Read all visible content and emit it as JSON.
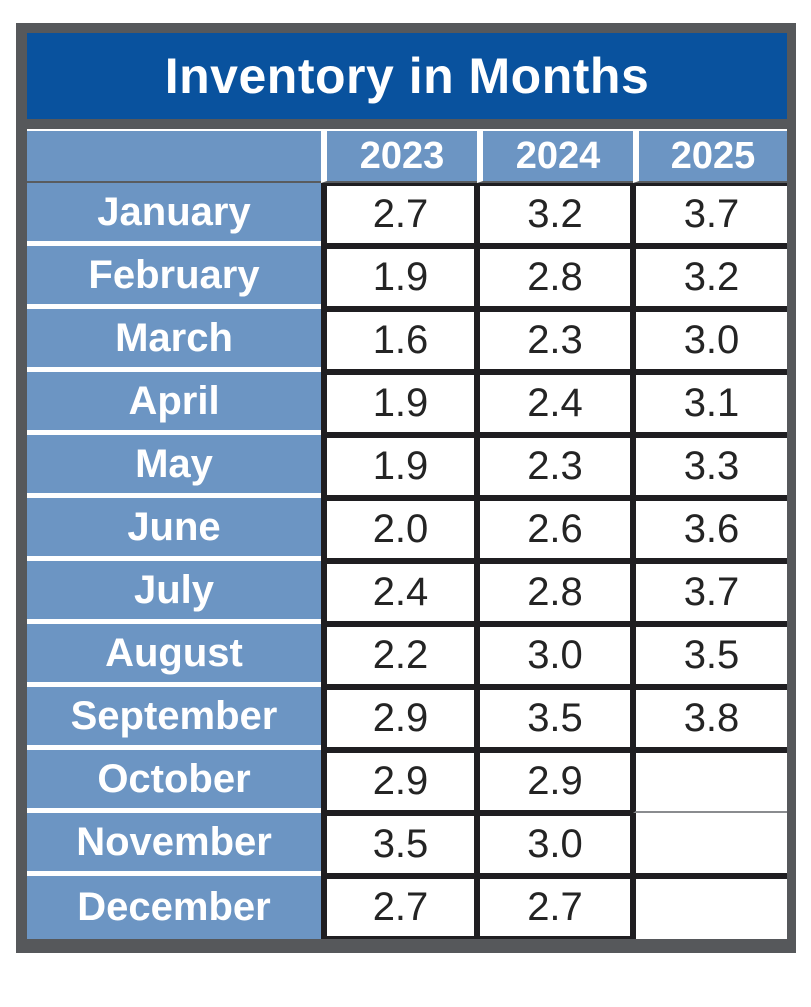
{
  "title": "Inventory in Months",
  "table": {
    "columns": [
      "2023",
      "2024",
      "2025"
    ],
    "rows": [
      {
        "month": "January",
        "values": [
          "2.7",
          "3.2",
          "3.7"
        ]
      },
      {
        "month": "February",
        "values": [
          "1.9",
          "2.8",
          "3.2"
        ]
      },
      {
        "month": "March",
        "values": [
          "1.6",
          "2.3",
          "3.0"
        ]
      },
      {
        "month": "April",
        "values": [
          "1.9",
          "2.4",
          "3.1"
        ]
      },
      {
        "month": "May",
        "values": [
          "1.9",
          "2.3",
          "3.3"
        ]
      },
      {
        "month": "June",
        "values": [
          "2.0",
          "2.6",
          "3.6"
        ]
      },
      {
        "month": "July",
        "values": [
          "2.4",
          "2.8",
          "3.7"
        ]
      },
      {
        "month": "August",
        "values": [
          "2.2",
          "3.0",
          "3.5"
        ]
      },
      {
        "month": "September",
        "values": [
          "2.9",
          "3.5",
          "3.8"
        ]
      },
      {
        "month": "October",
        "values": [
          "2.9",
          "2.9",
          ""
        ]
      },
      {
        "month": "November",
        "values": [
          "3.5",
          "3.0",
          ""
        ]
      },
      {
        "month": "December",
        "values": [
          "2.7",
          "2.7",
          ""
        ]
      }
    ]
  },
  "colors": {
    "title_bg": "#09529E",
    "header_bg": "#6C95C3",
    "frame": "#56585B",
    "cell_border": "#1F1E21",
    "gridline": "#8A8C8F",
    "text_dark": "#242424",
    "text_light": "#FFFFFF"
  },
  "chart_data": {
    "type": "table",
    "title": "Inventory in Months",
    "categories": [
      "January",
      "February",
      "March",
      "April",
      "May",
      "June",
      "July",
      "August",
      "September",
      "October",
      "November",
      "December"
    ],
    "series": [
      {
        "name": "2023",
        "values": [
          2.7,
          1.9,
          1.6,
          1.9,
          1.9,
          2.0,
          2.4,
          2.2,
          2.9,
          2.9,
          3.5,
          2.7
        ]
      },
      {
        "name": "2024",
        "values": [
          3.2,
          2.8,
          2.3,
          2.4,
          2.3,
          2.6,
          2.8,
          3.0,
          3.5,
          2.9,
          3.0,
          2.7
        ]
      },
      {
        "name": "2025",
        "values": [
          3.7,
          3.2,
          3.0,
          3.1,
          3.3,
          3.6,
          3.7,
          3.5,
          3.8,
          null,
          null,
          null
        ]
      }
    ]
  }
}
